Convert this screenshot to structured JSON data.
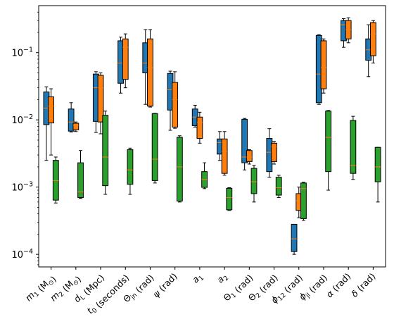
{
  "chart_data": {
    "type": "box",
    "yscale": "log",
    "ylim": [
      6.5e-05,
      0.5
    ],
    "yticks": [
      {
        "value": 0.0001,
        "base": "10",
        "exp": "−4"
      },
      {
        "value": 0.001,
        "base": "10",
        "exp": "−3"
      },
      {
        "value": 0.01,
        "base": "10",
        "exp": "−2"
      },
      {
        "value": 0.1,
        "base": "10",
        "exp": "−1"
      }
    ],
    "grid": false,
    "legend": "none",
    "series_colors": [
      "#1f77b4",
      "#ff7f0e",
      "#2ca02c"
    ],
    "median_color": "#ff7f0e",
    "categories": [
      {
        "label": "m_1 (M_⊙)",
        "math": [
          [
            "i",
            "m"
          ],
          [
            "sub",
            "1"
          ],
          [
            "t",
            " (M"
          ],
          [
            "sub",
            "⊙"
          ],
          [
            "t",
            ")"
          ]
        ]
      },
      {
        "label": "m_2 (M_⊙)",
        "math": [
          [
            "i",
            "m"
          ],
          [
            "sub",
            "2"
          ],
          [
            "t",
            " (M"
          ],
          [
            "sub",
            "⊙"
          ],
          [
            "t",
            ")"
          ]
        ]
      },
      {
        "label": "d_L (Mpc)",
        "math": [
          [
            "i",
            "d"
          ],
          [
            "sub",
            "L"
          ],
          [
            "t",
            " (Mpc)"
          ]
        ]
      },
      {
        "label": "t_0 (seconds)",
        "math": [
          [
            "i",
            "t"
          ],
          [
            "sub",
            "0"
          ],
          [
            "t",
            " (seconds)"
          ]
        ]
      },
      {
        "label": "Θ_jn (rad)",
        "math": [
          [
            "t",
            "Θ"
          ],
          [
            "sub",
            "jn"
          ],
          [
            "t",
            " (rad)"
          ]
        ]
      },
      {
        "label": "ψ (rad)",
        "math": [
          [
            "i",
            "ψ"
          ],
          [
            "t",
            " (rad)"
          ]
        ]
      },
      {
        "label": "a_1",
        "math": [
          [
            "i",
            "a"
          ],
          [
            "sub",
            "1"
          ]
        ]
      },
      {
        "label": "a_2",
        "math": [
          [
            "i",
            "a"
          ],
          [
            "sub",
            "2"
          ]
        ]
      },
      {
        "label": "Θ_1 (rad)",
        "math": [
          [
            "t",
            "Θ"
          ],
          [
            "sub",
            "1"
          ],
          [
            "t",
            " (rad)"
          ]
        ]
      },
      {
        "label": "Θ_2 (rad)",
        "math": [
          [
            "t",
            "Θ"
          ],
          [
            "sub",
            "2"
          ],
          [
            "t",
            " (rad)"
          ]
        ]
      },
      {
        "label": "ϕ_12 (rad)",
        "math": [
          [
            "i",
            "ϕ"
          ],
          [
            "sub",
            "12"
          ],
          [
            "t",
            " (rad)"
          ]
        ]
      },
      {
        "label": "ϕ_jl (rad)",
        "math": [
          [
            "i",
            "ϕ"
          ],
          [
            "sub",
            "jl"
          ],
          [
            "t",
            " (rad)"
          ]
        ]
      },
      {
        "label": "α (rad)",
        "math": [
          [
            "i",
            "α"
          ],
          [
            "t",
            " (rad)"
          ]
        ]
      },
      {
        "label": "δ (rad)",
        "math": [
          [
            "i",
            "δ"
          ],
          [
            "t",
            " (rad)"
          ]
        ]
      }
    ],
    "series": [
      {
        "color": "#1f77b4",
        "boxes": [
          {
            "cat": 0,
            "whislo": 0.0025,
            "q1": 0.0085,
            "med": 0.015,
            "q3": 0.026,
            "whishi": 0.031
          },
          {
            "cat": 1,
            "whislo": 0.0066,
            "q1": 0.0068,
            "med": 0.0093,
            "q3": 0.0145,
            "whishi": 0.018
          },
          {
            "cat": 2,
            "whislo": 0.0065,
            "q1": 0.0095,
            "med": 0.03,
            "q3": 0.048,
            "whishi": 0.052
          },
          {
            "cat": 3,
            "whislo": 0.025,
            "q1": 0.035,
            "med": 0.07,
            "q3": 0.15,
            "whishi": 0.17
          },
          {
            "cat": 4,
            "whislo": 0.017,
            "q1": 0.05,
            "med": 0.07,
            "q3": 0.14,
            "whishi": 0.22
          },
          {
            "cat": 5,
            "whislo": 0.007,
            "q1": 0.014,
            "med": 0.028,
            "q3": 0.049,
            "whishi": 0.053
          },
          {
            "cat": 6,
            "whislo": 0.0078,
            "q1": 0.0082,
            "med": 0.011,
            "q3": 0.0145,
            "whishi": 0.0165
          },
          {
            "cat": 7,
            "whislo": 0.0025,
            "q1": 0.0031,
            "med": 0.0046,
            "q3": 0.0052,
            "whishi": 0.0067
          },
          {
            "cat": 8,
            "whislo": 0.0018,
            "q1": 0.0023,
            "med": 0.0028,
            "q3": 0.0102,
            "whishi": 0.0105
          },
          {
            "cat": 9,
            "whislo": 0.0014,
            "q1": 0.0017,
            "med": 0.0033,
            "q3": 0.0053,
            "whishi": 0.0074
          },
          {
            "cat": 10,
            "whislo": 0.0001,
            "q1": 0.00011,
            "med": 0.00017,
            "q3": 0.00028,
            "whishi": 0.00028
          },
          {
            "cat": 11,
            "whislo": 0.017,
            "q1": 0.018,
            "med": 0.048,
            "q3": 0.18,
            "whishi": 0.185
          },
          {
            "cat": 12,
            "whislo": 0.12,
            "q1": 0.15,
            "med": 0.26,
            "q3": 0.3,
            "whishi": 0.32
          },
          {
            "cat": 13,
            "whislo": 0.044,
            "q1": 0.077,
            "med": 0.11,
            "q3": 0.16,
            "whishi": 0.26
          }
        ]
      },
      {
        "color": "#ff7f0e",
        "boxes": [
          {
            "cat": 0,
            "whislo": 0.003,
            "q1": 0.009,
            "med": 0.016,
            "q3": 0.022,
            "whishi": 0.029
          },
          {
            "cat": 1,
            "whislo": 0.0067,
            "q1": 0.0071,
            "med": 0.0083,
            "q3": 0.0089,
            "whishi": 0.0093
          },
          {
            "cat": 2,
            "whislo": 0.0062,
            "q1": 0.0093,
            "med": 0.03,
            "q3": 0.046,
            "whishi": 0.05
          },
          {
            "cat": 3,
            "whislo": 0.03,
            "q1": 0.04,
            "med": 0.12,
            "q3": 0.16,
            "whishi": 0.19
          },
          {
            "cat": 4,
            "whislo": 0.0155,
            "q1": 0.016,
            "med": 0.06,
            "q3": 0.16,
            "whishi": 0.22
          },
          {
            "cat": 5,
            "whislo": 0.0075,
            "q1": 0.0078,
            "med": 0.02,
            "q3": 0.036,
            "whishi": 0.052
          },
          {
            "cat": 6,
            "whislo": 0.0045,
            "q1": 0.0053,
            "med": 0.0092,
            "q3": 0.011,
            "whishi": 0.013
          },
          {
            "cat": 7,
            "whislo": 0.0015,
            "q1": 0.0016,
            "med": 0.0034,
            "q3": 0.0052,
            "whishi": 0.0067
          },
          {
            "cat": 8,
            "whislo": 0.0022,
            "q1": 0.0024,
            "med": 0.0028,
            "q3": 0.0035,
            "whishi": 0.0036
          },
          {
            "cat": 9,
            "whislo": 0.0022,
            "q1": 0.0024,
            "med": 0.004,
            "q3": 0.0045,
            "whishi": 0.0048
          },
          {
            "cat": 10,
            "whislo": 0.00035,
            "q1": 0.00045,
            "med": 0.00063,
            "q3": 0.0008,
            "whishi": 0.001
          },
          {
            "cat": 11,
            "whislo": 0.025,
            "q1": 0.029,
            "med": 0.06,
            "q3": 0.15,
            "whishi": 0.16
          },
          {
            "cat": 12,
            "whislo": 0.14,
            "q1": 0.16,
            "med": 0.22,
            "q3": 0.3,
            "whishi": 0.33
          },
          {
            "cat": 13,
            "whislo": 0.07,
            "q1": 0.09,
            "med": 0.19,
            "q3": 0.28,
            "whishi": 0.3
          }
        ]
      },
      {
        "color": "#2ca02c",
        "boxes": [
          {
            "cat": 0,
            "whislo": 0.00058,
            "q1": 0.00064,
            "med": 0.00125,
            "q3": 0.0025,
            "whishi": 0.0028
          },
          {
            "cat": 1,
            "whislo": 0.00068,
            "q1": 0.0007,
            "med": 0.00085,
            "q3": 0.0023,
            "whishi": 0.0035
          },
          {
            "cat": 2,
            "whislo": 0.00078,
            "q1": 0.00105,
            "med": 0.0028,
            "q3": 0.0117,
            "whishi": 0.0135
          },
          {
            "cat": 3,
            "whislo": 0.00078,
            "q1": 0.0011,
            "med": 0.0018,
            "q3": 0.0036,
            "whishi": 0.0038
          },
          {
            "cat": 4,
            "whislo": 0.00115,
            "q1": 0.00125,
            "med": 0.0026,
            "q3": 0.0124,
            "whishi": 0.0125
          },
          {
            "cat": 5,
            "whislo": 0.0006,
            "q1": 0.00062,
            "med": 0.002,
            "q3": 0.0055,
            "whishi": 0.0058
          },
          {
            "cat": 6,
            "whislo": 0.00095,
            "q1": 0.00099,
            "med": 0.0013,
            "q3": 0.0017,
            "whishi": 0.0023
          },
          {
            "cat": 7,
            "whislo": 0.00045,
            "q1": 0.00046,
            "med": 0.0007,
            "q3": 0.00096,
            "whishi": 0.00098
          },
          {
            "cat": 8,
            "whislo": 0.0006,
            "q1": 0.0008,
            "med": 0.0012,
            "q3": 0.0019,
            "whishi": 0.0021
          },
          {
            "cat": 9,
            "whislo": 0.0007,
            "q1": 0.00076,
            "med": 0.00098,
            "q3": 0.0014,
            "whishi": 0.0015
          },
          {
            "cat": 10,
            "whislo": 0.00032,
            "q1": 0.00034,
            "med": 0.00095,
            "q3": 0.00115,
            "whishi": 0.00118
          },
          {
            "cat": 11,
            "whislo": 0.0009,
            "q1": 0.0017,
            "med": 0.0055,
            "q3": 0.0135,
            "whishi": 0.0138
          },
          {
            "cat": 12,
            "whislo": 0.0013,
            "q1": 0.0016,
            "med": 0.0021,
            "q3": 0.0098,
            "whishi": 0.0113
          },
          {
            "cat": 13,
            "whislo": 0.0006,
            "q1": 0.0012,
            "med": 0.002,
            "q3": 0.0039,
            "whishi": 0.0039
          }
        ]
      }
    ]
  }
}
